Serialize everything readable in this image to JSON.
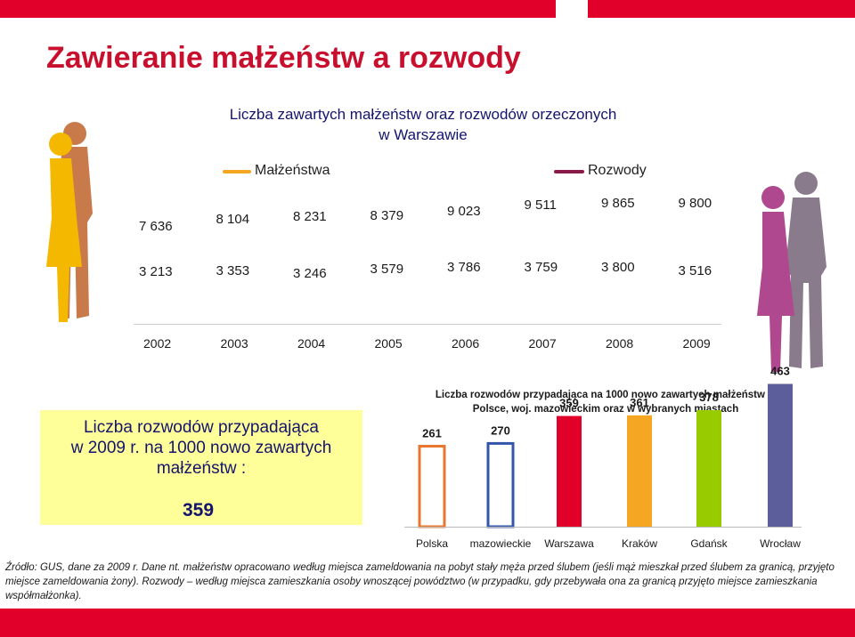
{
  "title": "Zawieranie małżeństw a rozwody",
  "top_chart": {
    "subtitle_line1": "Liczba zawartych małżeństw oraz rozwodów orzeczonych",
    "subtitle_line2": "w Warszawie",
    "legend_marriages": "Małżeństwa",
    "legend_divorces": "Rozwody",
    "colors": {
      "marriages": "#f5a623",
      "divorces": "#8b1a4a"
    },
    "years": [
      "2002",
      "2003",
      "2004",
      "2005",
      "2006",
      "2007",
      "2008",
      "2009"
    ],
    "marriages_labels": [
      "7 636",
      "8 104",
      "8 231",
      "8 379",
      "9 023",
      "9 511",
      "9 865",
      "9 800"
    ],
    "divorces_labels": [
      "3 213",
      "3 353",
      "3 246",
      "3 579",
      "3 786",
      "3 759",
      "3 800",
      "3 516"
    ]
  },
  "info_box": {
    "line1": "Liczba rozwodów przypadająca",
    "line2": "w 2009 r. na 1000 nowo zawartych",
    "line3": "małżeństw :",
    "value": "359"
  },
  "chart_data": {
    "type": "bar",
    "title": "Liczba rozwodów przypadająca na 1000 nowo zawartych małżeństw w Polsce, woj. mazowieckim oraz w wybranych miastach",
    "categories": [
      "Polska",
      "mazowieckie",
      "Warszawa",
      "Kraków",
      "Gdańsk",
      "Wrocław"
    ],
    "values": [
      261,
      270,
      359,
      361,
      378,
      463
    ],
    "value_labels": [
      "261",
      "270",
      "359",
      "361",
      "378",
      "463"
    ],
    "colors": [
      "#e8762c",
      "#3355aa",
      "#e0002a",
      "#f5a623",
      "#99cc00",
      "#5b5e9b"
    ],
    "filled": [
      false,
      false,
      true,
      true,
      true,
      true
    ],
    "ylim": [
      0,
      500
    ]
  },
  "source_text": "Źródło: GUS, dane za 2009 r. Dane nt. małżeństw opracowano według miejsca zameldowania na pobyt stały męża przed ślubem (jeśli mąż mieszkał przed ślubem za granicą, przyjęto miejsce zameldowania żony). Rozwody – według miejsca zamieszkania osoby wnoszącej powództwo (w przypadku, gdy przebywała ona za granicą przyjęto miejsce zamieszkania współmałżonka)."
}
